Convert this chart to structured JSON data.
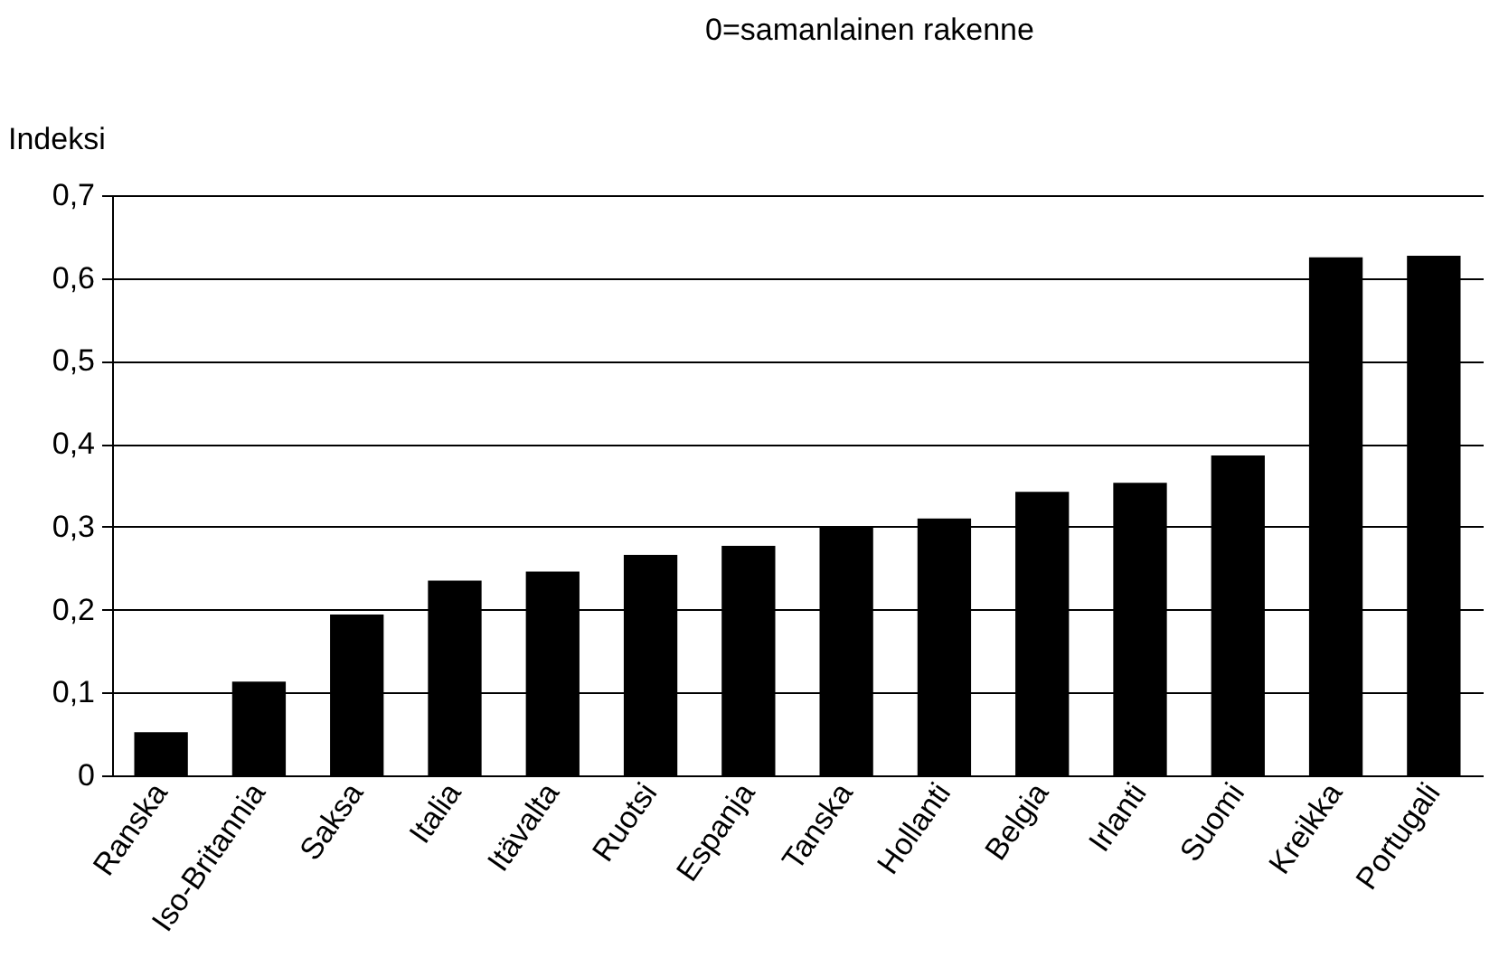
{
  "chart_data": {
    "type": "bar",
    "title": "0=samanlainen rakenne",
    "ylabel": "Indeksi",
    "categories": [
      "Ranska",
      "Iso-Britannia",
      "Saksa",
      "Italia",
      "Itävalta",
      "Ruotsi",
      "Espanja",
      "Tanska",
      "Hollanti",
      "Belgia",
      "Irlanti",
      "Suomi",
      "Kreikka",
      "Portugali"
    ],
    "values": [
      0.052,
      0.113,
      0.194,
      0.235,
      0.246,
      0.266,
      0.277,
      0.3,
      0.31,
      0.342,
      0.353,
      0.386,
      0.625,
      0.627
    ],
    "color": "#000000",
    "ylim": [
      0,
      0.7
    ],
    "yticks": [
      0,
      {
        "value": 0.1,
        "label": "0,1"
      },
      {
        "value": 0.2,
        "label": "0,2"
      },
      {
        "value": 0.3,
        "label": "0,3"
      },
      {
        "value": 0.4,
        "label": "0,4"
      },
      {
        "value": 0.5,
        "label": "0,5"
      },
      {
        "value": 0.6,
        "label": "0,6"
      },
      {
        "value": 0.7,
        "label": "0,7"
      }
    ],
    "grid": "y"
  }
}
